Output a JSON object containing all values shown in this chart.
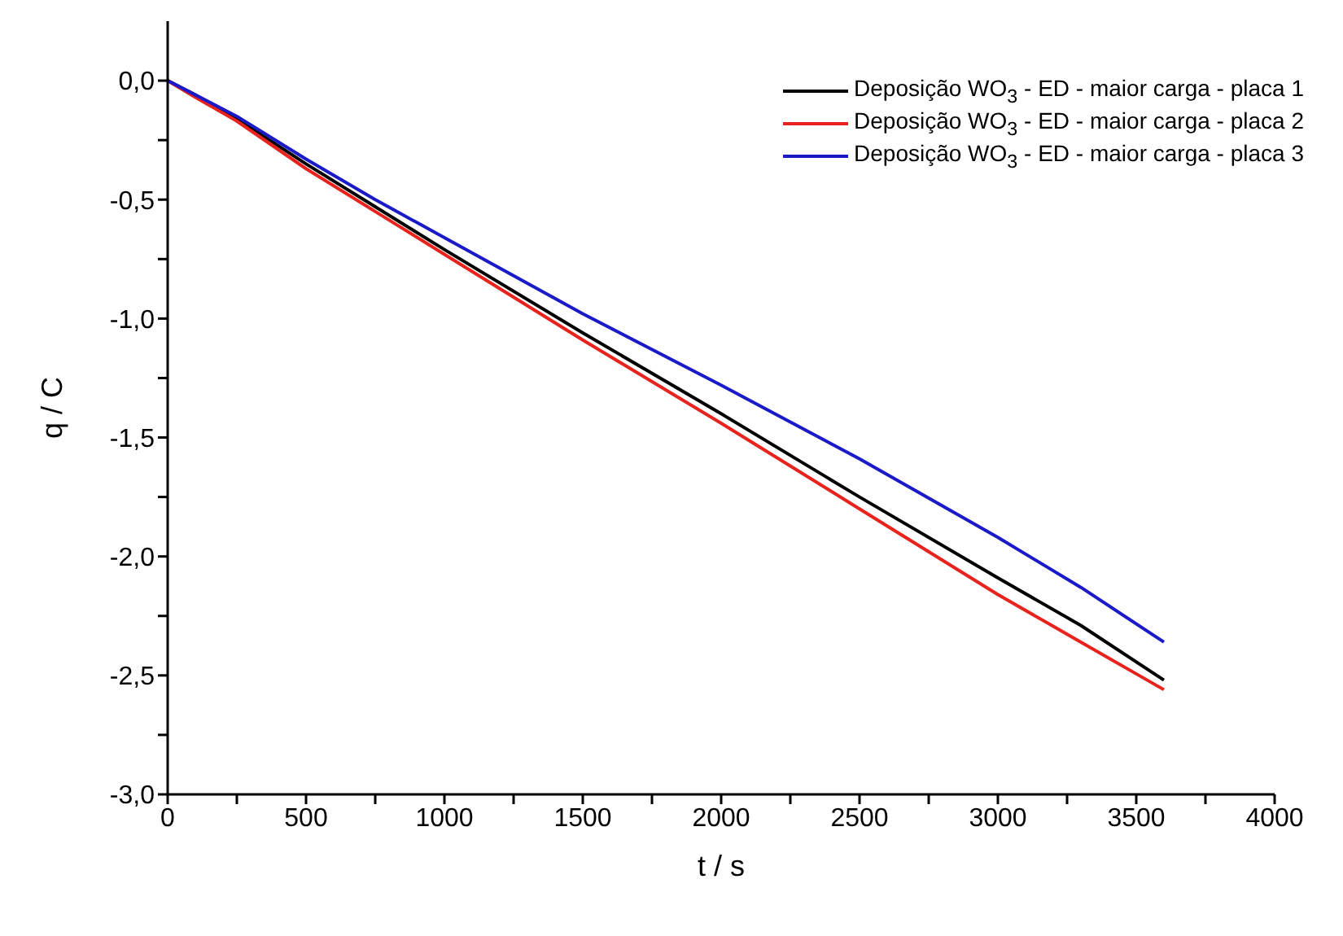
{
  "chart_data": {
    "type": "line",
    "xlabel": "t / s",
    "ylabel": "q / C",
    "xlim": [
      0,
      4000
    ],
    "xticks": [
      0,
      {
        "value": 250,
        "label": null
      },
      500,
      {
        "value": 750,
        "label": null
      },
      1000,
      {
        "value": 1250,
        "label": null
      },
      1500,
      {
        "value": 1750,
        "label": null
      },
      2000,
      {
        "value": 2250,
        "label": null
      },
      2500,
      {
        "value": 2750,
        "label": null
      },
      3000,
      {
        "value": 3250,
        "label": null
      },
      3500,
      {
        "value": 3750,
        "label": null
      },
      4000
    ],
    "ylim": [
      -3,
      0.25
    ],
    "yticks": [
      {
        "value": -3,
        "label": "-3,0"
      },
      {
        "value": -2.75,
        "label": null
      },
      {
        "value": -2.5,
        "label": "-2,5"
      },
      {
        "value": -2.25,
        "label": null
      },
      {
        "value": -2,
        "label": "-2,0"
      },
      {
        "value": -1.75,
        "label": null
      },
      {
        "value": -1.5,
        "label": "-1,5"
      },
      {
        "value": -1.25,
        "label": null
      },
      {
        "value": -1,
        "label": "-1,0"
      },
      {
        "value": -0.75,
        "label": null
      },
      {
        "value": -0.5,
        "label": "-0,5"
      },
      {
        "value": -0.25,
        "label": null
      },
      {
        "value": 0,
        "label": "0,0"
      }
    ],
    "x": [
      0,
      100,
      250,
      500,
      750,
      1000,
      1500,
      2000,
      2500,
      3000,
      3300,
      3600
    ],
    "series": [
      {
        "name": "Deposição WO$_{3}$ - ED - maior carga - placa 1",
        "color": "#000000",
        "values": [
          0,
          -0.06,
          -0.16,
          -0.35,
          -0.53,
          -0.71,
          -1.06,
          -1.4,
          -1.75,
          -2.09,
          -2.29,
          -2.52
        ]
      },
      {
        "name": "Deposição WO$_{3}$ - ED - maior carga - placa 2",
        "color": "#e8231d",
        "values": [
          0,
          -0.07,
          -0.17,
          -0.37,
          -0.55,
          -0.73,
          -1.09,
          -1.44,
          -1.8,
          -2.16,
          -2.36,
          -2.56
        ]
      },
      {
        "name": "Deposição WO$_{3}$ - ED - maior carga - placa 3",
        "color": "#1a1ac8",
        "values": [
          0,
          -0.06,
          -0.15,
          -0.33,
          -0.5,
          -0.66,
          -0.98,
          -1.28,
          -1.59,
          -1.92,
          -2.13,
          -2.36
        ]
      }
    ],
    "legend": "top right",
    "grid": false,
    "marker": "none",
    "line_style": "solid"
  }
}
